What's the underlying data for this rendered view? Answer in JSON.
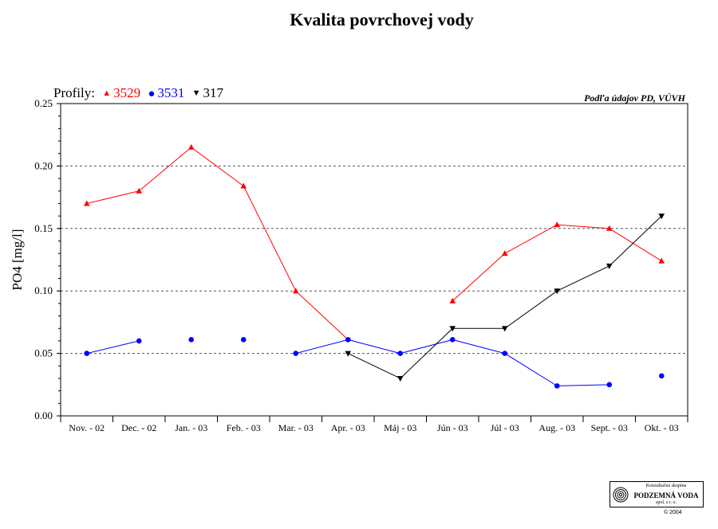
{
  "chart_data": {
    "type": "line",
    "title": "Kvalita povrchovej vody",
    "ylabel": "PO4 [mg/l]",
    "xlabel": "",
    "source_note": "Podľa údajov PD, VÚVH",
    "legend_prefix": "Profily:",
    "ylim": [
      0,
      0.25
    ],
    "yticks": [
      "0.00",
      "0.05",
      "0.10",
      "0.15",
      "0.20",
      "0.25"
    ],
    "grid": "dashed horizontal at 0.05, 0.10, 0.15, 0.20",
    "categories": [
      "Nov. - 02",
      "Dec. - 02",
      "Jan. - 03",
      "Feb. - 03",
      "Mar. - 03",
      "Apr. - 03",
      "Máj - 03",
      "Jún - 03",
      "Júl - 03",
      "Aug. - 03",
      "Sept. - 03",
      "Okt. - 03"
    ],
    "series": [
      {
        "name": "3529",
        "color": "#ff0000",
        "marker": "triangle-up",
        "values": [
          0.17,
          0.18,
          0.215,
          0.184,
          0.1,
          null,
          null,
          0.092,
          0.13,
          0.153,
          0.15,
          0.124
        ]
      },
      {
        "name": "3531",
        "color": "#0000ff",
        "marker": "circle",
        "values": [
          0.05,
          0.06,
          0.061,
          0.061,
          0.05,
          0.061,
          0.05,
          0.061,
          0.05,
          0.024,
          0.025,
          0.032
        ]
      },
      {
        "name": "317",
        "color": "#000000",
        "marker": "triangle-down",
        "values": [
          null,
          null,
          null,
          null,
          null,
          0.05,
          0.03,
          0.07,
          0.07,
          0.1,
          0.12,
          0.16
        ]
      }
    ],
    "line_segments_note": "Markers are connected only between certain consecutive months as drawn in the original."
  },
  "logo": {
    "line1": "Konzultačná skupina",
    "line2": "PODZEMNÁ VODA",
    "line3": "spol. s r. o."
  },
  "copyright": "© 2004",
  "legend": {
    "markers": {
      "triangle_up": "▲",
      "circle": "●",
      "triangle_down": "▼"
    }
  }
}
